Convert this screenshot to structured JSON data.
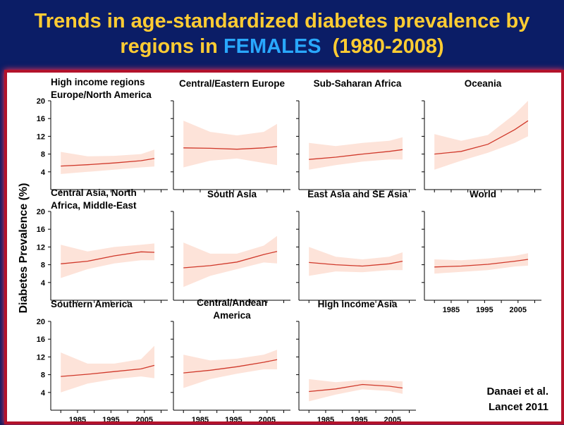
{
  "slide": {
    "title_part1": "Trends in age-standardized diabetes prevalence by",
    "title_part2": "regions in ",
    "title_highlight": "FEMALES",
    "title_part3": "  (1980-2008)",
    "ylabel": "Diabetes Prevalence (%)",
    "citation_line1": "Danaei et al.",
    "citation_line2": "Lancet 2011"
  },
  "colors": {
    "background": "#0b1d66",
    "title": "#ffcc33",
    "highlight": "#29a8ff",
    "border": "#b3122b",
    "line": "#d0392b",
    "band": "#fde3d9"
  },
  "chart_data": [
    {
      "type": "line",
      "title": [
        "High income regions",
        "Europe/North America"
      ],
      "x": [
        1980,
        1988,
        1996,
        2004,
        2008
      ],
      "y": [
        5.3,
        5.6,
        6.0,
        6.5,
        7.0
      ],
      "lower": [
        3.5,
        4.0,
        4.5,
        5.0,
        5.2
      ],
      "upper": [
        8.5,
        7.5,
        7.6,
        8.0,
        9.0
      ],
      "ylim": [
        0,
        20
      ],
      "yticks": [
        4,
        8,
        12,
        16,
        20
      ],
      "show_yticks": true,
      "show_xticks": false
    },
    {
      "type": "line",
      "title": [
        "Central/Eastern Europe"
      ],
      "x": [
        1980,
        1988,
        1996,
        2004,
        2008
      ],
      "y": [
        9.4,
        9.3,
        9.1,
        9.4,
        9.7
      ],
      "lower": [
        5.0,
        6.5,
        7.0,
        6.0,
        5.5
      ],
      "upper": [
        15.5,
        13.0,
        12.2,
        13.0,
        14.8
      ],
      "ylim": [
        0,
        20
      ],
      "yticks": [
        4,
        8,
        12,
        16,
        20
      ],
      "show_yticks": false,
      "show_xticks": false
    },
    {
      "type": "line",
      "title": [
        "Sub-Saharan Africa"
      ],
      "x": [
        1980,
        1988,
        1996,
        2004,
        2008
      ],
      "y": [
        6.8,
        7.3,
        8.0,
        8.6,
        9.0
      ],
      "lower": [
        4.5,
        5.5,
        6.3,
        6.8,
        6.8
      ],
      "upper": [
        10.5,
        9.8,
        10.5,
        11.0,
        11.8
      ],
      "ylim": [
        0,
        20
      ],
      "yticks": [
        4,
        8,
        12,
        16,
        20
      ],
      "show_yticks": false,
      "show_xticks": false
    },
    {
      "type": "line",
      "title": [
        "Oceania"
      ],
      "x": [
        1980,
        1988,
        1996,
        2004,
        2008
      ],
      "y": [
        8.0,
        8.6,
        10.2,
        13.5,
        15.5
      ],
      "lower": [
        4.5,
        6.5,
        8.3,
        10.5,
        12.0
      ],
      "upper": [
        12.5,
        11.0,
        12.3,
        17.0,
        20.0
      ],
      "ylim": [
        0,
        20
      ],
      "yticks": [
        4,
        8,
        12,
        16,
        20
      ],
      "show_yticks": false,
      "show_xticks": false
    },
    {
      "type": "line",
      "title": [
        "Central Asia, North",
        "Africa, Middle-East"
      ],
      "x": [
        1980,
        1988,
        1996,
        2004,
        2008
      ],
      "y": [
        8.2,
        8.8,
        10.0,
        10.9,
        10.8
      ],
      "lower": [
        5.0,
        7.0,
        8.3,
        9.0,
        9.0
      ],
      "upper": [
        12.5,
        11.0,
        12.0,
        12.5,
        12.8
      ],
      "ylim": [
        0,
        20
      ],
      "yticks": [
        4,
        8,
        12,
        16,
        20
      ],
      "show_yticks": true,
      "show_xticks": false
    },
    {
      "type": "line",
      "title": [
        "South Asia"
      ],
      "x": [
        1980,
        1988,
        1996,
        2004,
        2008
      ],
      "y": [
        7.3,
        7.8,
        8.6,
        10.3,
        11.0
      ],
      "lower": [
        3.0,
        5.5,
        7.0,
        8.5,
        8.3
      ],
      "upper": [
        13.0,
        10.5,
        10.5,
        12.3,
        14.5
      ],
      "ylim": [
        0,
        20
      ],
      "yticks": [
        4,
        8,
        12,
        16,
        20
      ],
      "show_yticks": false,
      "show_xticks": false
    },
    {
      "type": "line",
      "title": [
        "East Asia and SE Asia"
      ],
      "x": [
        1980,
        1988,
        1996,
        2004,
        2008
      ],
      "y": [
        8.5,
        8.0,
        7.7,
        8.2,
        8.8
      ],
      "lower": [
        5.5,
        6.5,
        6.3,
        6.8,
        6.8
      ],
      "upper": [
        12.0,
        9.8,
        9.2,
        9.8,
        10.8
      ],
      "ylim": [
        0,
        20
      ],
      "yticks": [
        4,
        8,
        12,
        16,
        20
      ],
      "show_yticks": false,
      "show_xticks": false
    },
    {
      "type": "line",
      "title": [
        "World"
      ],
      "x": [
        1980,
        1988,
        1996,
        2004,
        2008
      ],
      "y": [
        7.5,
        7.7,
        8.1,
        8.8,
        9.2
      ],
      "lower": [
        6.0,
        6.4,
        6.8,
        7.6,
        7.8
      ],
      "upper": [
        9.2,
        9.0,
        9.4,
        10.0,
        10.6
      ],
      "ylim": [
        0,
        20
      ],
      "yticks": [
        4,
        8,
        12,
        16,
        20
      ],
      "show_yticks": false,
      "show_xticks": true,
      "xtick_labels": [
        "1985",
        "1995",
        "2005"
      ]
    },
    {
      "type": "line",
      "title": [
        "Southern America"
      ],
      "x": [
        1980,
        1988,
        1996,
        2004,
        2008
      ],
      "y": [
        7.6,
        8.1,
        8.7,
        9.3,
        10.1
      ],
      "lower": [
        4.0,
        6.0,
        7.0,
        7.6,
        7.2
      ],
      "upper": [
        13.0,
        10.5,
        10.5,
        11.5,
        14.5
      ],
      "ylim": [
        0,
        20
      ],
      "yticks": [
        4,
        8,
        12,
        16,
        20
      ],
      "show_yticks": true,
      "show_xticks": true,
      "xtick_labels": [
        "1985",
        "1995",
        "2005"
      ]
    },
    {
      "type": "line",
      "title": [
        "Central/Andean",
        "America"
      ],
      "x": [
        1980,
        1988,
        1996,
        2004,
        2008
      ],
      "y": [
        8.4,
        9.0,
        9.8,
        10.8,
        11.4
      ],
      "lower": [
        5.0,
        7.0,
        8.2,
        9.2,
        9.2
      ],
      "upper": [
        12.5,
        11.2,
        11.6,
        12.5,
        13.6
      ],
      "ylim": [
        0,
        20
      ],
      "yticks": [
        4,
        8,
        12,
        16,
        20
      ],
      "show_yticks": false,
      "show_xticks": true,
      "xtick_labels": [
        "1985",
        "1995",
        "2005"
      ]
    },
    {
      "type": "line",
      "title": [
        "High income Asia"
      ],
      "x": [
        1980,
        1988,
        1996,
        2004,
        2008
      ],
      "y": [
        4.2,
        4.8,
        5.8,
        5.4,
        5.0
      ],
      "lower": [
        2.0,
        3.5,
        4.7,
        4.3,
        3.7
      ],
      "upper": [
        7.0,
        6.3,
        6.8,
        6.6,
        6.5
      ],
      "ylim": [
        0,
        20
      ],
      "yticks": [
        4,
        8,
        12,
        16,
        20
      ],
      "show_yticks": false,
      "show_xticks": true,
      "xtick_labels": [
        "1985",
        "1995",
        "2005"
      ]
    }
  ]
}
